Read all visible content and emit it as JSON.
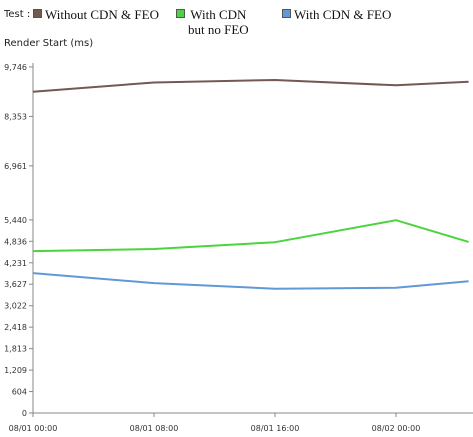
{
  "legend": {
    "title": "Test :",
    "items": [
      {
        "name": "Without CDN & FEO",
        "color": "#725a52"
      },
      {
        "name": "With CDN\nbut no FEO",
        "color": "#4ad53e"
      },
      {
        "name": "With CDN & FEO",
        "color": "#6198d6"
      }
    ]
  },
  "chart_data": {
    "type": "line",
    "title": "",
    "ylabel": "Render Start (ms)",
    "xlabel": "",
    "ylim": [
      0,
      9746
    ],
    "yticks": [
      "0",
      "604",
      "1,209",
      "1,813",
      "2,418",
      "3,022",
      "3,627",
      "4,231",
      "4,836",
      "5,440",
      "6,961",
      "8,353",
      "9,746"
    ],
    "ytick_values": [
      0,
      604,
      1209,
      1813,
      2418,
      3022,
      3627,
      4231,
      4836,
      5440,
      6961,
      8353,
      9746
    ],
    "xticks": [
      "08/01 00:00",
      "08/01 08:00",
      "08/01 16:00",
      "08/02 00:00"
    ],
    "x": [
      0,
      1,
      2,
      3,
      3.6
    ],
    "series": [
      {
        "name": "Without CDN & FEO",
        "color": "#725a52",
        "values": [
          9050,
          9310,
          9380,
          9230,
          9330
        ]
      },
      {
        "name": "With CDN but no FEO",
        "color": "#4ad53e",
        "values": [
          4560,
          4620,
          4810,
          5430,
          4820
        ]
      },
      {
        "name": "With CDN & FEO",
        "color": "#6198d6",
        "values": [
          3940,
          3660,
          3500,
          3530,
          3710
        ]
      }
    ]
  }
}
